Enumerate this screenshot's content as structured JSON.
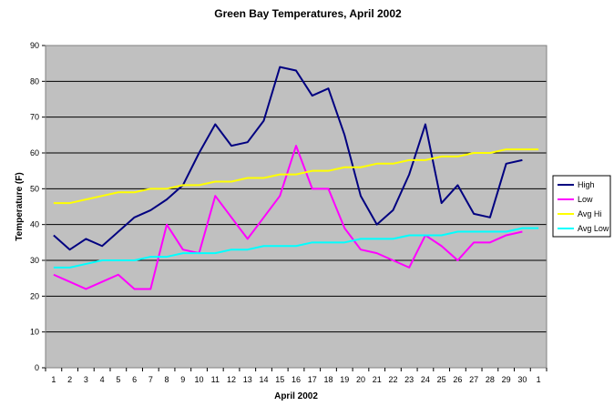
{
  "chart_data": {
    "type": "line",
    "title": "Green Bay Temperatures, April 2002",
    "xlabel": "April 2002",
    "ylabel": "Temperature (F)",
    "ylim": [
      0,
      90
    ],
    "yticks": [
      "0",
      "10",
      "20",
      "30",
      "40",
      "50",
      "60",
      "70",
      "80",
      "90"
    ],
    "categories": [
      "1",
      "2",
      "3",
      "4",
      "5",
      "6",
      "7",
      "8",
      "9",
      "10",
      "11",
      "12",
      "13",
      "14",
      "15",
      "16",
      "17",
      "18",
      "19",
      "20",
      "21",
      "22",
      "23",
      "24",
      "25",
      "26",
      "27",
      "28",
      "29",
      "30",
      "1"
    ],
    "grid": "horizontal",
    "legend_position": "right",
    "series": [
      {
        "name": "High",
        "color": "#000080",
        "values": [
          37,
          33,
          36,
          34,
          38,
          42,
          44,
          47,
          51,
          60,
          68,
          62,
          63,
          69,
          84,
          83,
          76,
          78,
          65,
          48,
          40,
          44,
          54,
          68,
          46,
          51,
          43,
          42,
          57,
          58,
          null
        ]
      },
      {
        "name": "Low",
        "color": "#ff00ff",
        "values": [
          26,
          24,
          22,
          24,
          26,
          22,
          22,
          40,
          33,
          32,
          48,
          42,
          36,
          42,
          48,
          62,
          50,
          50,
          39,
          33,
          32,
          30,
          28,
          37,
          34,
          30,
          35,
          35,
          37,
          38,
          null
        ]
      },
      {
        "name": "Avg Hi",
        "color": "#ffff00",
        "values": [
          46,
          46,
          47,
          48,
          49,
          49,
          50,
          50,
          51,
          51,
          52,
          52,
          53,
          53,
          54,
          54,
          55,
          55,
          56,
          56,
          57,
          57,
          58,
          58,
          59,
          59,
          60,
          60,
          61,
          61,
          61
        ]
      },
      {
        "name": "Avg Low",
        "color": "#00ffff",
        "values": [
          28,
          28,
          29,
          30,
          30,
          30,
          31,
          31,
          32,
          32,
          32,
          33,
          33,
          34,
          34,
          34,
          35,
          35,
          35,
          36,
          36,
          36,
          37,
          37,
          37,
          38,
          38,
          38,
          38,
          39,
          39
        ]
      }
    ]
  }
}
